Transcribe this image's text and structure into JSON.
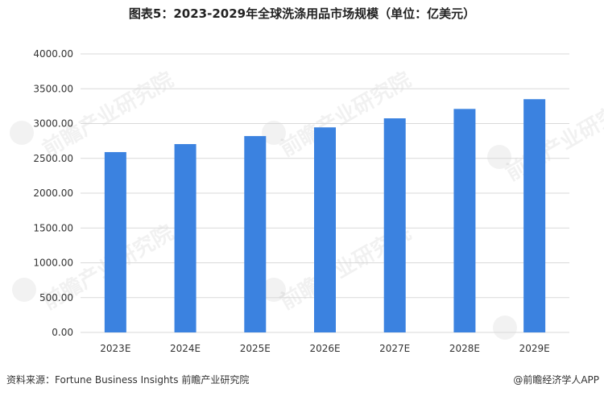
{
  "footer": {
    "source": "资料来源：Fortune Business Insights 前瞻产业研究院",
    "brand": "@前瞻经济学人APP"
  },
  "watermark": {
    "text": "前瞻产业研究院"
  },
  "colors": {
    "bar": "#3b82e0",
    "grid": "#d9d9d9",
    "axis_text": "#333333"
  },
  "chart_data": {
    "type": "bar",
    "title": "图表5：2023-2029年全球洗涤用品市场规模（单位：亿美元）",
    "categories": [
      "2023E",
      "2024E",
      "2025E",
      "2026E",
      "2027E",
      "2028E",
      "2029E"
    ],
    "values": [
      2590,
      2705,
      2820,
      2945,
      3075,
      3210,
      3350
    ],
    "ylim": [
      0,
      4000
    ],
    "y_ticks": [
      "0.00",
      "500.00",
      "1000.00",
      "1500.00",
      "2000.00",
      "2500.00",
      "3000.00",
      "3500.00",
      "4000.00"
    ],
    "grid": true,
    "legend": "none"
  }
}
